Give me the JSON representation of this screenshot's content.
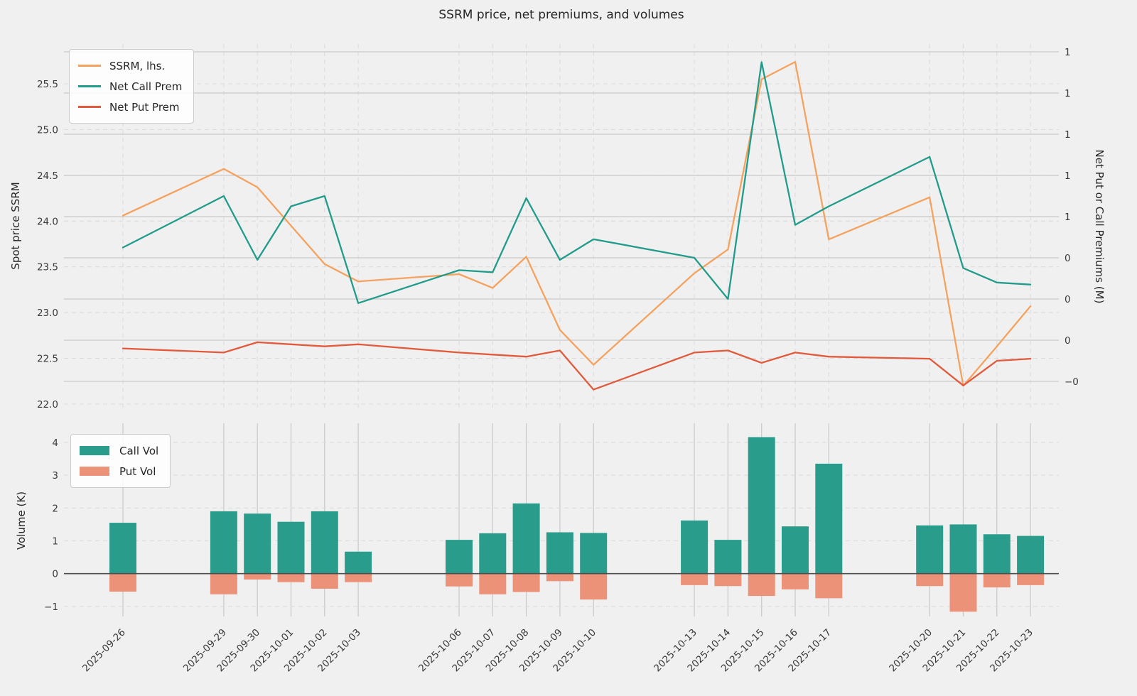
{
  "title": "SSRM price, net premiums, and volumes",
  "colors": {
    "background": "#F0F0F0",
    "ssrm": "#F5A25E",
    "net_call": "#219B8A",
    "net_put": "#E25A3C",
    "call_vol": "#2A9C8B",
    "put_vol": "#EC9279",
    "grid_solid": "#C9C9C9",
    "grid_dashed": "#DBDBDB",
    "grid_vertical_top": "#DCDCDC",
    "grid_vertical_bottom": "#CBCBCB",
    "zero_line": "#4D4D4D",
    "text": "#262626"
  },
  "x_axis": {
    "dates": [
      "2025-09-26",
      "2025-09-29",
      "2025-09-30",
      "2025-10-01",
      "2025-10-02",
      "2025-10-03",
      "2025-10-06",
      "2025-10-07",
      "2025-10-08",
      "2025-10-09",
      "2025-10-10",
      "2025-10-13",
      "2025-10-14",
      "2025-10-15",
      "2025-10-16",
      "2025-10-17",
      "2025-10-20",
      "2025-10-21",
      "2025-10-22",
      "2025-10-23"
    ]
  },
  "top_chart": {
    "ylabel_left": "Spot price SSRM",
    "ylabel_right": "Net Put or Call Premiums (M)",
    "left_ticks": {
      "values": [
        25.5,
        25.0,
        24.5,
        24.0,
        23.5,
        23.0,
        22.5,
        22.0
      ],
      "labels": [
        "25.5",
        "25.0",
        "24.5",
        "24.0",
        "23.5",
        "23.0",
        "22.5",
        "22.0"
      ]
    },
    "right_ticks": {
      "values": [
        1.4,
        1.2,
        1.0,
        0.8,
        0.6,
        0.4,
        0.2,
        0.0,
        -0.2
      ],
      "labels": [
        "1",
        "1",
        "1",
        "1",
        "1",
        "0",
        "0",
        "0",
        "−0"
      ]
    }
  },
  "bottom_chart": {
    "ylabel": "Volume (K)",
    "yticks": {
      "values": [
        4,
        3,
        2,
        1,
        0,
        -1
      ],
      "labels": [
        "4",
        "3",
        "2",
        "1",
        "0",
        "−1"
      ]
    }
  },
  "chart_data": [
    {
      "type": "line",
      "title": "SSRM price and net premiums",
      "x": [
        "2025-09-26",
        "2025-09-29",
        "2025-09-30",
        "2025-10-01",
        "2025-10-02",
        "2025-10-03",
        "2025-10-06",
        "2025-10-07",
        "2025-10-08",
        "2025-10-09",
        "2025-10-10",
        "2025-10-13",
        "2025-10-14",
        "2025-10-15",
        "2025-10-16",
        "2025-10-17",
        "2025-10-20",
        "2025-10-21",
        "2025-10-22",
        "2025-10-23"
      ],
      "ylabel_left": "Spot price SSRM",
      "ylabel_right": "Net Put or Call Premiums (M)",
      "ylim_left": [
        21.85,
        25.99
      ],
      "ylim_right": [
        -0.35,
        1.44
      ],
      "legend_position": "upper left",
      "grid": true,
      "series": [
        {
          "name": "SSRM, lhs.",
          "axis": "left",
          "color": "#F5A25E",
          "values": [
            24.06,
            24.57,
            24.37,
            23.95,
            23.53,
            23.34,
            23.42,
            23.27,
            23.61,
            22.81,
            22.43,
            23.43,
            23.69,
            25.55,
            25.74,
            23.8,
            24.26,
            22.2,
            22.63,
            23.07
          ]
        },
        {
          "name": "Net Call Prem",
          "axis": "right",
          "color": "#219B8A",
          "values": [
            0.45,
            0.7,
            0.39,
            0.65,
            0.7,
            0.18,
            0.34,
            0.33,
            0.69,
            0.39,
            0.49,
            0.4,
            0.2,
            1.35,
            0.56,
            0.65,
            0.89,
            0.35,
            0.28,
            0.27
          ]
        },
        {
          "name": "Net Put Prem",
          "axis": "right",
          "color": "#E25A3C",
          "values": [
            -0.04,
            -0.06,
            -0.01,
            -0.02,
            -0.03,
            -0.02,
            -0.06,
            -0.07,
            -0.08,
            -0.05,
            -0.24,
            -0.06,
            -0.05,
            -0.11,
            -0.06,
            -0.08,
            -0.09,
            -0.22,
            -0.1,
            -0.09
          ]
        }
      ]
    },
    {
      "type": "bar",
      "title": "Volumes",
      "x": [
        "2025-09-26",
        "2025-09-29",
        "2025-09-30",
        "2025-10-01",
        "2025-10-02",
        "2025-10-03",
        "2025-10-06",
        "2025-10-07",
        "2025-10-08",
        "2025-10-09",
        "2025-10-10",
        "2025-10-13",
        "2025-10-14",
        "2025-10-15",
        "2025-10-16",
        "2025-10-17",
        "2025-10-20",
        "2025-10-21",
        "2025-10-22",
        "2025-10-23"
      ],
      "ylabel": "Volume (K)",
      "ylim": [
        -1.4,
        4.55
      ],
      "legend_position": "upper left",
      "grid": true,
      "series": [
        {
          "name": "Call Vol",
          "color": "#2A9C8B",
          "values": [
            1.55,
            1.9,
            1.83,
            1.58,
            1.9,
            0.67,
            1.03,
            1.23,
            2.14,
            1.26,
            1.24,
            1.62,
            1.03,
            4.16,
            1.44,
            3.35,
            1.47,
            1.5,
            1.2,
            1.15
          ]
        },
        {
          "name": "Put Vol",
          "color": "#EC9279",
          "values": [
            -0.55,
            -0.63,
            -0.18,
            -0.26,
            -0.46,
            -0.26,
            -0.39,
            -0.63,
            -0.56,
            -0.23,
            -0.79,
            -0.35,
            -0.38,
            -0.68,
            -0.48,
            -0.75,
            -0.38,
            -1.16,
            -0.42,
            -0.35
          ]
        }
      ]
    }
  ]
}
